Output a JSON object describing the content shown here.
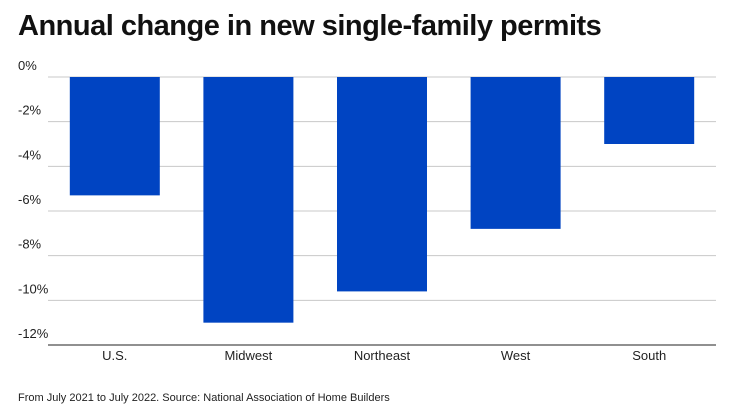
{
  "title": "Annual change in new single-family permits",
  "note": "From July 2021 to July 2022. Source: National Association of Home Builders",
  "colors": {
    "bar": "#0044c2",
    "grid": "#c8c8c8",
    "axis": "#222222"
  },
  "chart_data": {
    "type": "bar",
    "title": "Annual change in new single-family permits",
    "categories": [
      "U.S.",
      "Midwest",
      "Northeast",
      "West",
      "South"
    ],
    "values": [
      -5.3,
      -11.0,
      -9.6,
      -6.8,
      -3.0
    ],
    "ylim": [
      -12,
      0
    ],
    "yticks": [
      0,
      -2,
      -4,
      -6,
      -8,
      -10,
      -12
    ],
    "ytick_labels": [
      "0%",
      "-2%",
      "-4%",
      "-6%",
      "-8%",
      "-10%",
      "-12%"
    ],
    "grid": true,
    "xlabel": "",
    "ylabel": ""
  }
}
